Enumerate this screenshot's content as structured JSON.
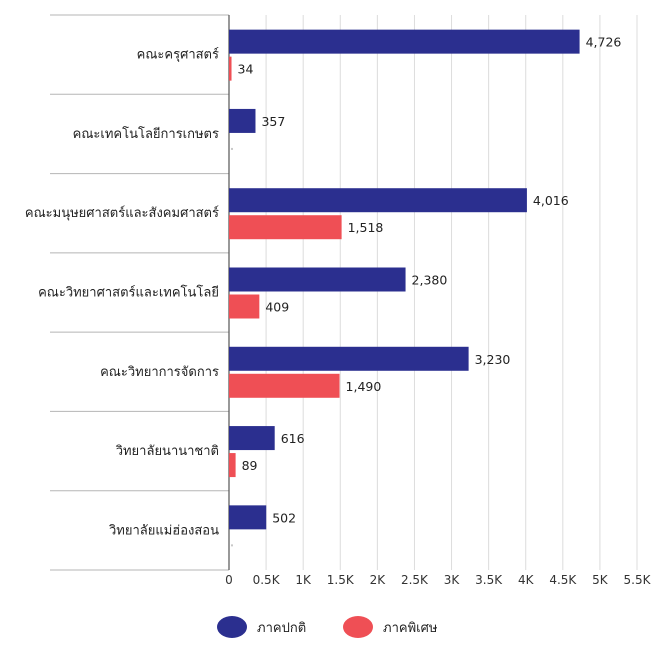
{
  "chart_data": {
    "type": "bar",
    "orientation": "horizontal",
    "categories": [
      "คณะครุศาสตร์",
      "คณะเทคโนโลยีการเกษตร",
      "คณะมนุษยศาสตร์และสังคมศาสตร์",
      "คณะวิทยาศาสตร์และเทคโนโลยี",
      "คณะวิทยาการจัดการ",
      "วิทยาลัยนานาชาติ",
      "วิทยาลัยแม่ฮ่องสอน"
    ],
    "series": [
      {
        "name": "ภาคปกติ",
        "color": "#2b2f8f",
        "values": [
          4726,
          357,
          4016,
          2380,
          3230,
          616,
          502
        ],
        "labels": [
          "4,726",
          "357",
          "4,016",
          "2,380",
          "3,230",
          "616",
          "502"
        ]
      },
      {
        "name": "ภาคพิเศษ",
        "color": "#ef4f55",
        "values": [
          34,
          0,
          1518,
          409,
          1490,
          89,
          0
        ],
        "labels": [
          "34",
          "",
          "1,518",
          "409",
          "1,490",
          "89",
          ""
        ]
      }
    ],
    "xlim": [
      0,
      5500
    ],
    "xticks": [
      0,
      500,
      1000,
      1500,
      2000,
      2500,
      3000,
      3500,
      4000,
      4500,
      5000,
      5500
    ],
    "xtick_labels": [
      "0",
      "0.5K",
      "1K",
      "1.5K",
      "2K",
      "2.5K",
      "3K",
      "3.5K",
      "4K",
      "4.5K",
      "5K",
      "5.5K"
    ],
    "grid": true,
    "legend_position": "bottom"
  }
}
